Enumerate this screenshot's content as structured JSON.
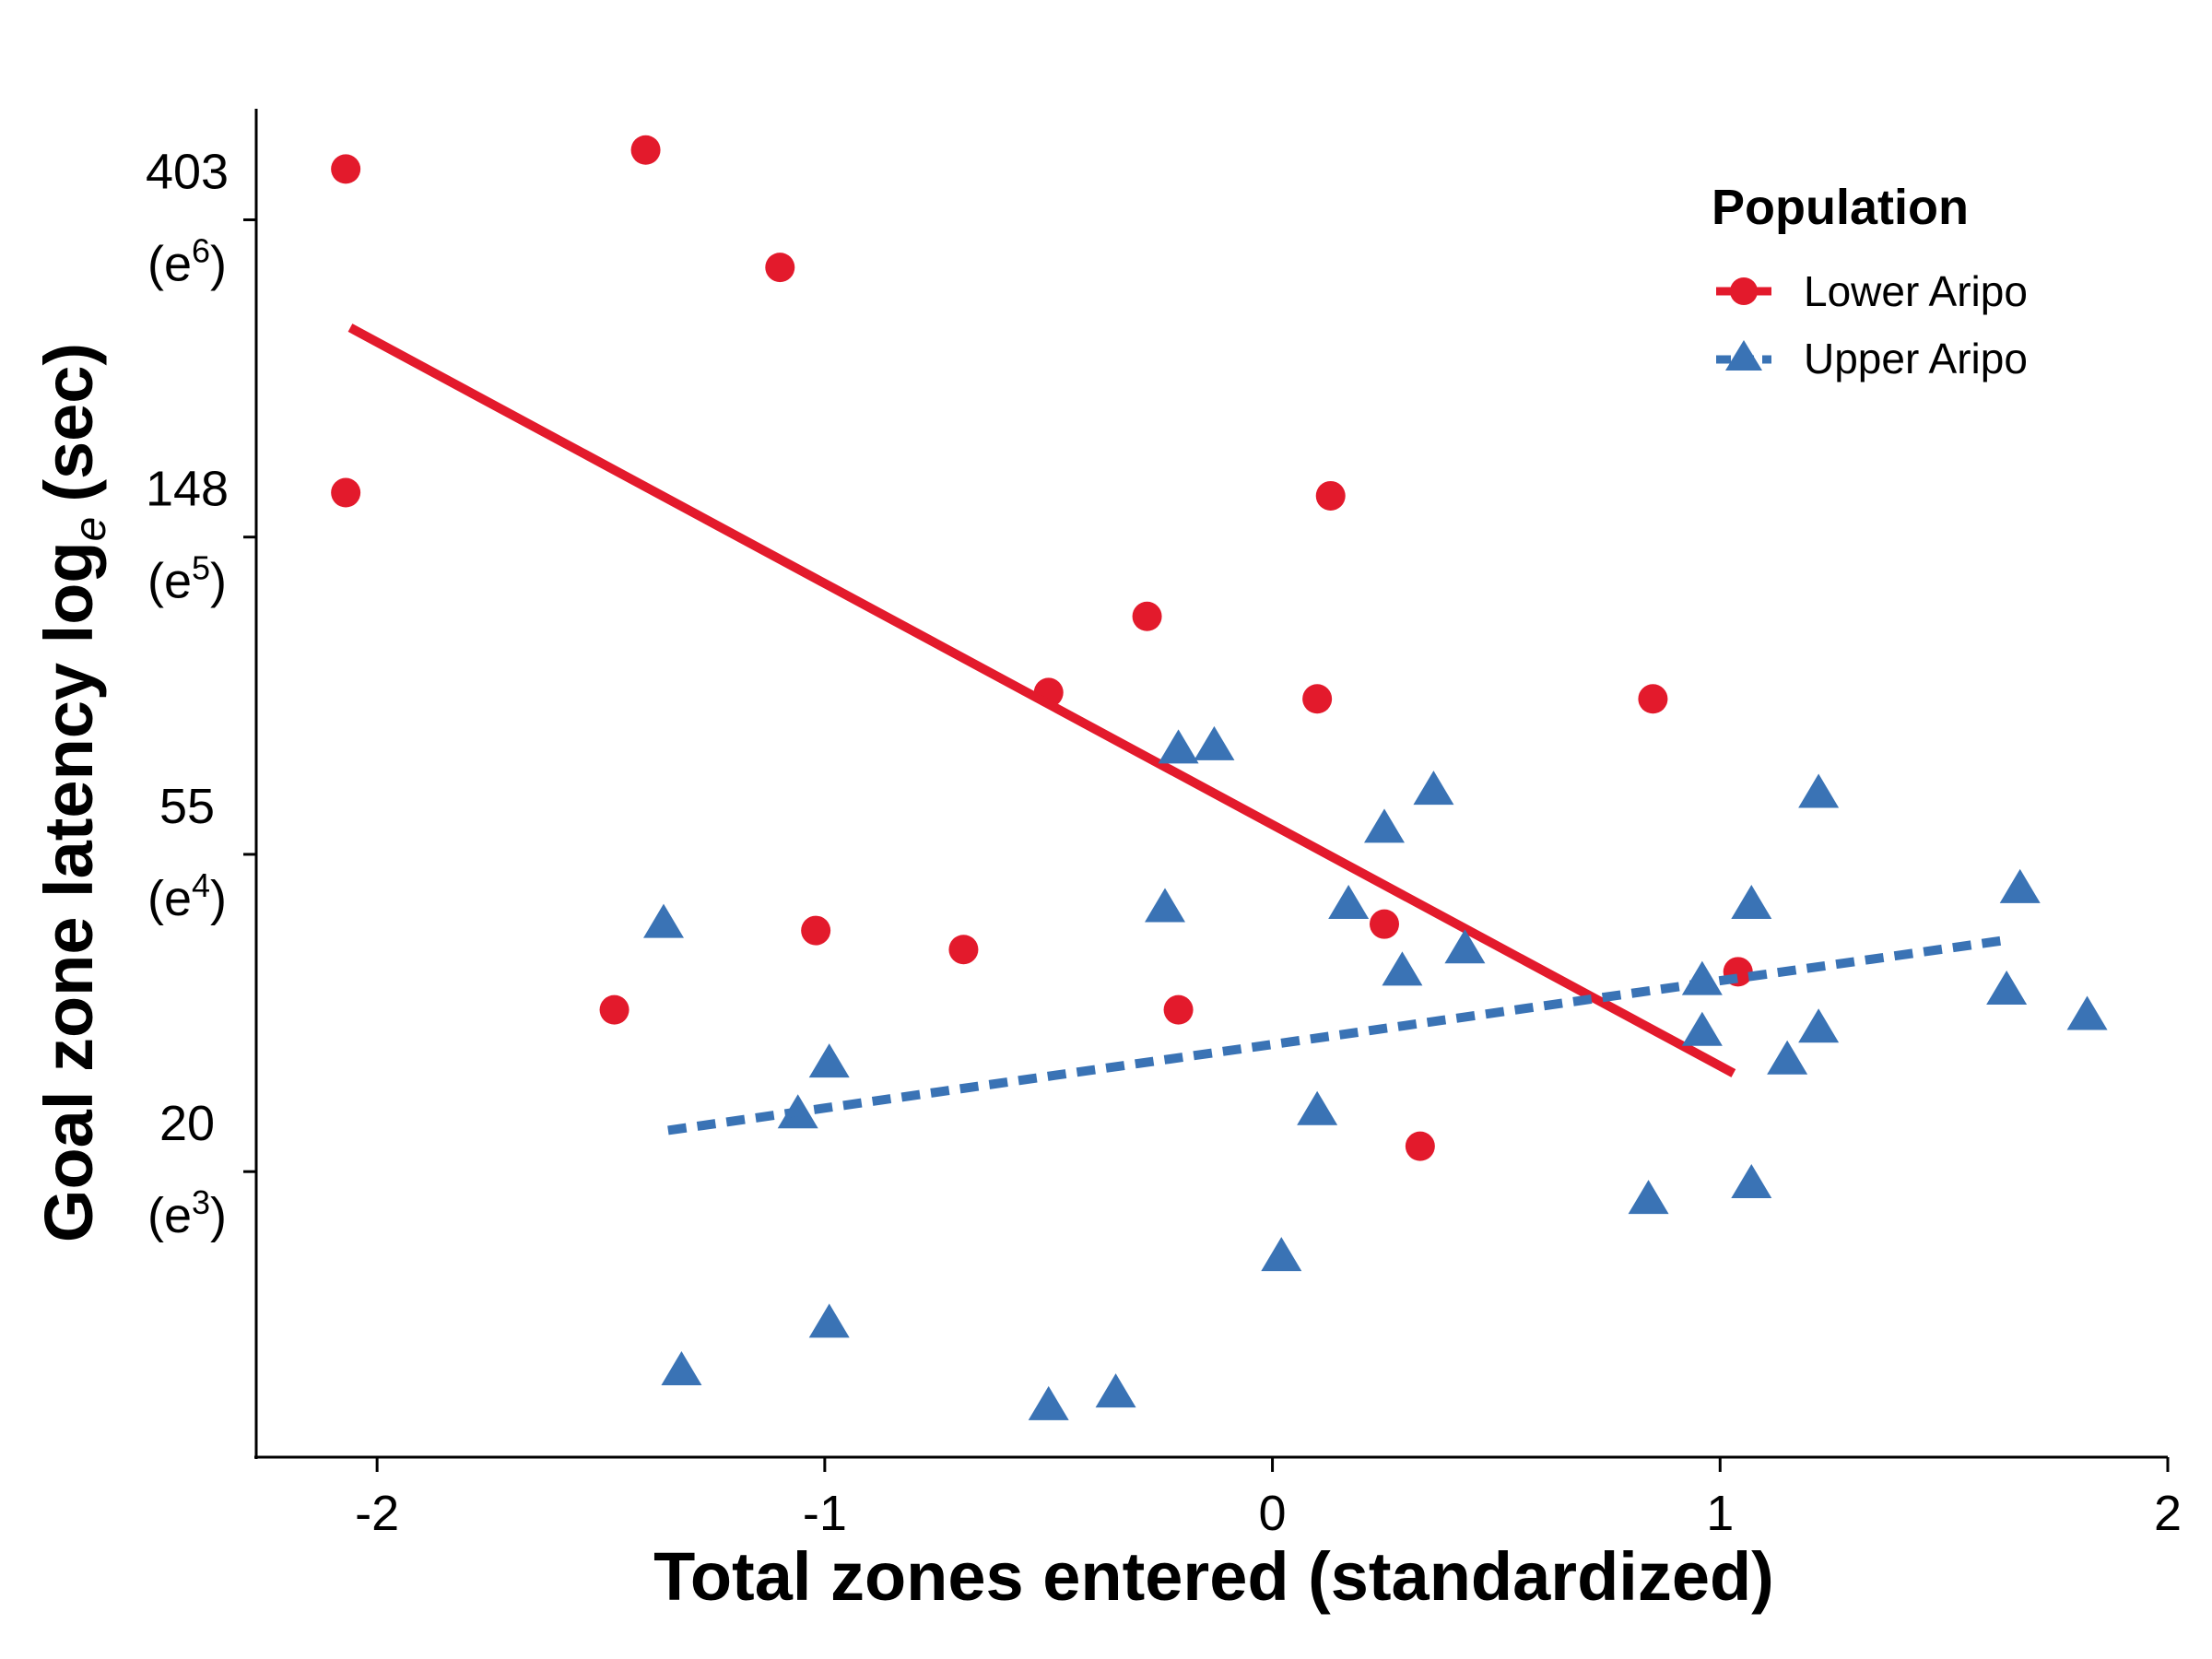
{
  "chart_data": {
    "type": "scatter",
    "xlabel": "Total zones entered (standardized)",
    "ylabel_main": "Goal zone latency log",
    "ylabel_sub": "e",
    "ylabel_unit": "(sec)",
    "xlim": [
      -2.27,
      2.0
    ],
    "ylim": [
      2.1,
      6.35
    ],
    "x_ticks": [
      {
        "value": -2,
        "label": "-2"
      },
      {
        "value": -1,
        "label": "-1"
      },
      {
        "value": 0,
        "label": "0"
      },
      {
        "value": 1,
        "label": "1"
      },
      {
        "value": 2,
        "label": "2"
      }
    ],
    "y_ticks": [
      {
        "value": 3,
        "label": "20",
        "exp_base": "(e",
        "exp": "3",
        "exp_close": ")"
      },
      {
        "value": 4,
        "label": "55",
        "exp_base": "(e",
        "exp": "4",
        "exp_close": ")"
      },
      {
        "value": 5,
        "label": "148",
        "exp_base": "(e",
        "exp": "5",
        "exp_close": ")"
      },
      {
        "value": 6,
        "label": "403",
        "exp_base": "(e",
        "exp": "6",
        "exp_close": ")"
      }
    ],
    "legend": {
      "title": "Population",
      "position": "top-right"
    },
    "grid": false,
    "series": [
      {
        "name": "Lower Aripo",
        "marker": "circle",
        "color": "#e31a2c",
        "line_style": "solid",
        "trend": [
          [
            -2.06,
            5.66
          ],
          [
            1.03,
            3.31
          ]
        ],
        "points": [
          [
            -2.07,
            6.16
          ],
          [
            -1.4,
            6.22
          ],
          [
            -1.1,
            5.85
          ],
          [
            -2.07,
            5.14
          ],
          [
            0.13,
            5.13
          ],
          [
            -0.28,
            4.75
          ],
          [
            -0.5,
            4.51
          ],
          [
            0.1,
            4.49
          ],
          [
            0.85,
            4.49
          ],
          [
            -1.02,
            3.76
          ],
          [
            -0.69,
            3.7
          ],
          [
            0.25,
            3.78
          ],
          [
            -1.47,
            3.51
          ],
          [
            -0.21,
            3.51
          ],
          [
            1.04,
            3.63
          ],
          [
            0.33,
            3.08
          ]
        ]
      },
      {
        "name": "Upper Aripo",
        "marker": "triangle",
        "color": "#3a73b5",
        "line_style": "dashed",
        "trend": [
          [
            -1.35,
            3.13
          ],
          [
            1.64,
            3.73
          ]
        ],
        "points": [
          [
            -0.21,
            4.33
          ],
          [
            -0.13,
            4.34
          ],
          [
            0.36,
            4.2
          ],
          [
            1.22,
            4.19
          ],
          [
            0.25,
            4.08
          ],
          [
            0.17,
            3.84
          ],
          [
            1.07,
            3.84
          ],
          [
            1.67,
            3.89
          ],
          [
            -0.24,
            3.83
          ],
          [
            -1.36,
            3.78
          ],
          [
            0.43,
            3.7
          ],
          [
            0.29,
            3.63
          ],
          [
            0.96,
            3.6
          ],
          [
            1.64,
            3.57
          ],
          [
            1.82,
            3.49
          ],
          [
            0.96,
            3.44
          ],
          [
            1.22,
            3.45
          ],
          [
            -0.99,
            3.34
          ],
          [
            1.15,
            3.35
          ],
          [
            -1.06,
            3.18
          ],
          [
            0.1,
            3.19
          ],
          [
            1.07,
            2.96
          ],
          [
            0.84,
            2.91
          ],
          [
            0.02,
            2.73
          ],
          [
            -0.99,
            2.52
          ],
          [
            -1.32,
            2.37
          ],
          [
            -0.35,
            2.3
          ],
          [
            -0.5,
            2.26
          ]
        ]
      }
    ]
  }
}
